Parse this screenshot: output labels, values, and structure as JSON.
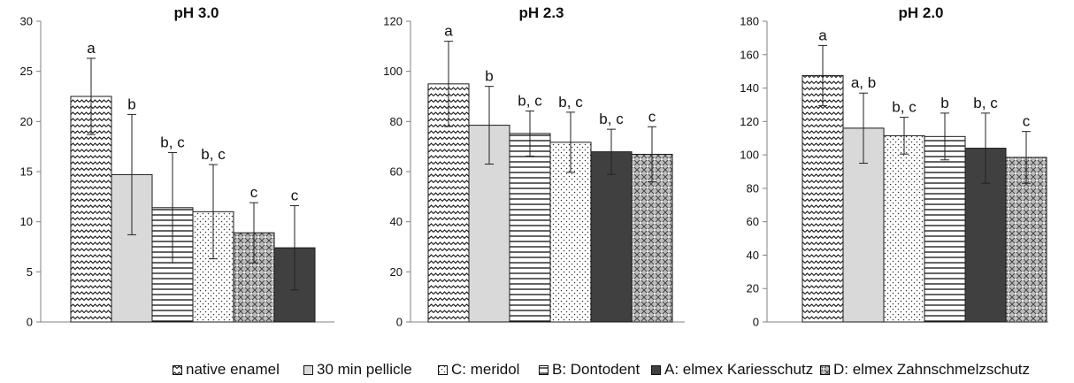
{
  "colors": {
    "axis": "#808080",
    "text": "#111111",
    "bar_stroke": "#1a1a1a",
    "light_gray": "#d9d9d9",
    "dark_gray": "#404040"
  },
  "legend": [
    {
      "label": "native enamel",
      "pattern": "wave"
    },
    {
      "label": "30 min pellicle",
      "pattern": "gray"
    },
    {
      "label": "C: meridol",
      "pattern": "dots"
    },
    {
      "label": "B: Dontodent",
      "pattern": "hlines"
    },
    {
      "label": "A: elmex Kariesschutz",
      "pattern": "dark"
    },
    {
      "label": "D: elmex Zahnschmelzschutz",
      "pattern": "diamond"
    }
  ],
  "chart_data": [
    {
      "type": "bar",
      "title": "pH 3.0",
      "ylim": [
        0,
        30
      ],
      "yticks": [
        0,
        5,
        10,
        15,
        20,
        25,
        30
      ],
      "grid": false,
      "categories": [
        "native enamel",
        "30 min pellicle",
        "B: Dontodent",
        "C: meridol",
        "D: elmex Zahnschmelzschutz",
        "A: elmex Kariesschutz"
      ],
      "patterns": [
        "wave",
        "gray",
        "hlines",
        "dots",
        "diamond",
        "dark"
      ],
      "values": [
        22.5,
        14.7,
        11.4,
        11.0,
        8.9,
        7.4
      ],
      "errors": [
        3.8,
        6.0,
        5.5,
        4.7,
        3.0,
        4.2
      ],
      "labels": [
        "a",
        "b",
        "b, c",
        "b, c",
        "c",
        "c"
      ]
    },
    {
      "type": "bar",
      "title": "pH 2.3",
      "ylim": [
        0,
        120
      ],
      "yticks": [
        0,
        20,
        40,
        60,
        80,
        100,
        120
      ],
      "grid": false,
      "categories": [
        "native enamel",
        "30 min pellicle",
        "B: Dontodent",
        "C: meridol",
        "A: elmex Kariesschutz",
        "D: elmex Zahnschmelzschutz"
      ],
      "patterns": [
        "wave",
        "gray",
        "hlines",
        "dots",
        "dark",
        "diamond"
      ],
      "values": [
        95,
        78.5,
        75.2,
        71.7,
        67.9,
        66.9
      ],
      "errors": [
        17,
        15.5,
        9,
        12,
        9,
        11
      ],
      "labels": [
        "a",
        "b",
        "b, c",
        "b, c",
        "b, c",
        "c"
      ]
    },
    {
      "type": "bar",
      "title": "pH 2.0",
      "ylim": [
        0,
        180
      ],
      "yticks": [
        0,
        20,
        40,
        60,
        80,
        100,
        120,
        140,
        160,
        180
      ],
      "grid": false,
      "categories": [
        "native enamel",
        "30 min pellicle",
        "C: meridol",
        "B: Dontodent",
        "A: elmex Kariesschutz",
        "D: elmex Zahnschmelzschutz"
      ],
      "patterns": [
        "wave",
        "gray",
        "dots",
        "hlines",
        "dark",
        "diamond"
      ],
      "values": [
        147.5,
        116,
        111.5,
        111,
        104,
        98.5
      ],
      "errors": [
        18,
        21,
        11,
        14,
        21,
        15.5
      ],
      "labels": [
        "a",
        "a, b",
        "b, c",
        "b",
        "b, c",
        "c"
      ]
    }
  ]
}
